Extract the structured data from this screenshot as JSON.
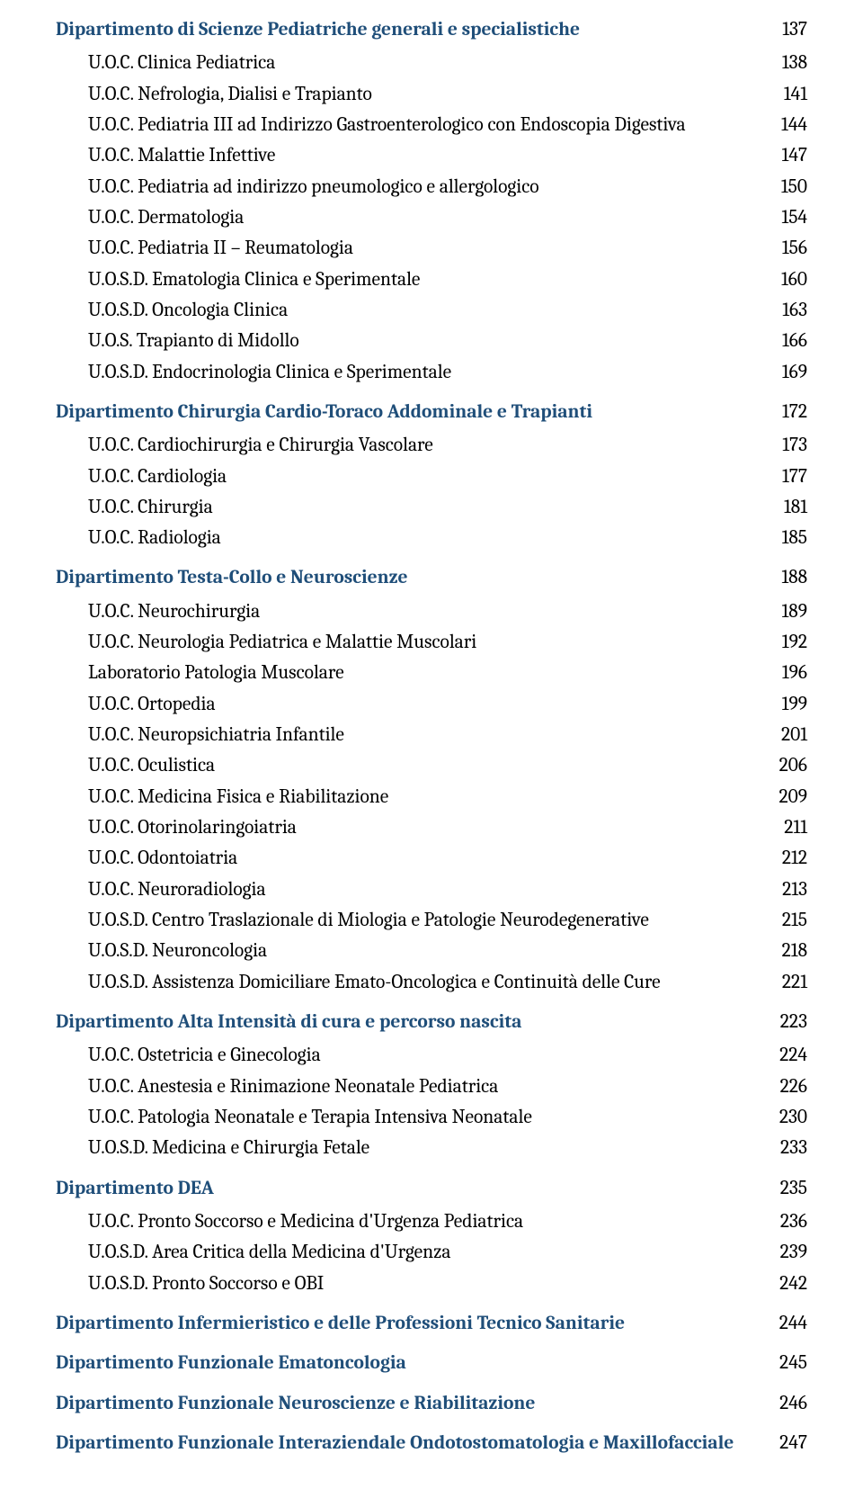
{
  "typography": {
    "font_family": "Cambria, Georgia, serif",
    "base_fontsize_pt": 16,
    "section_color": "#1f4e79",
    "text_color": "#000000",
    "background_color": "#ffffff"
  },
  "toc": [
    {
      "title": "Dipartimento di Scienze Pediatriche generali e specialistiche",
      "page": "137",
      "items": [
        {
          "label": "U.O.C. Clinica Pediatrica",
          "page": "138"
        },
        {
          "label": "U.O.C. Nefrologia, Dialisi e Trapianto",
          "page": "141"
        },
        {
          "label": "U.O.C. Pediatria III ad Indirizzo Gastroenterologico con Endoscopia Digestiva",
          "page": "144"
        },
        {
          "label": "U.O.C. Malattie Infettive",
          "page": "147"
        },
        {
          "label": "U.O.C. Pediatria ad indirizzo pneumologico e allergologico",
          "page": "150"
        },
        {
          "label": "U.O.C. Dermatologia",
          "page": "154"
        },
        {
          "label": "U.O.C. Pediatria II – Reumatologia",
          "page": "156"
        },
        {
          "label": "U.O.S.D. Ematologia Clinica e Sperimentale",
          "page": "160"
        },
        {
          "label": "U.O.S.D. Oncologia Clinica",
          "page": "163"
        },
        {
          "label": "U.O.S. Trapianto di Midollo",
          "page": "166"
        },
        {
          "label": "U.O.S.D. Endocrinologia Clinica e Sperimentale",
          "page": "169"
        }
      ]
    },
    {
      "title": "Dipartimento Chirurgia Cardio-Toraco Addominale e Trapianti",
      "page": "172",
      "items": [
        {
          "label": "U.O.C. Cardiochirurgia e Chirurgia Vascolare",
          "page": "173"
        },
        {
          "label": "U.O.C. Cardiologia",
          "page": "177"
        },
        {
          "label": "U.O.C. Chirurgia",
          "page": "181"
        },
        {
          "label": "U.O.C. Radiologia",
          "page": "185"
        }
      ]
    },
    {
      "title": "Dipartimento Testa-Collo e Neuroscienze",
      "page": "188",
      "items": [
        {
          "label": "U.O.C. Neurochirurgia",
          "page": "189"
        },
        {
          "label": "U.O.C. Neurologia Pediatrica e Malattie Muscolari",
          "page": "192"
        },
        {
          "label": "Laboratorio Patologia Muscolare",
          "page": "196"
        },
        {
          "label": "U.O.C. Ortopedia",
          "page": "199"
        },
        {
          "label": "U.O.C. Neuropsichiatria Infantile",
          "page": "201"
        },
        {
          "label": "U.O.C. Oculistica",
          "page": "206"
        },
        {
          "label": "U.O.C. Medicina Fisica e Riabilitazione",
          "page": "209"
        },
        {
          "label": "U.O.C. Otorinolaringoiatria",
          "page": "211"
        },
        {
          "label": "U.O.C. Odontoiatria",
          "page": "212"
        },
        {
          "label": "U.O.C. Neuroradiologia",
          "page": "213"
        },
        {
          "label": "U.O.S.D. Centro Traslazionale di Miologia e Patologie Neurodegenerative",
          "page": "215"
        },
        {
          "label": "U.O.S.D. Neuroncologia",
          "page": "218"
        },
        {
          "label": "U.O.S.D. Assistenza Domiciliare Emato-Oncologica e Continuità delle Cure",
          "page": "221"
        }
      ]
    },
    {
      "title": "Dipartimento Alta Intensità di cura e percorso nascita",
      "page": "223",
      "items": [
        {
          "label": "U.O.C. Ostetricia e Ginecologia",
          "page": "224"
        },
        {
          "label": "U.O.C. Anestesia e Rinimazione Neonatale Pediatrica",
          "page": "226"
        },
        {
          "label": "U.O.C. Patologia Neonatale e Terapia Intensiva Neonatale",
          "page": "230"
        },
        {
          "label": "U.O.S.D. Medicina e Chirurgia Fetale",
          "page": "233"
        }
      ]
    },
    {
      "title": "Dipartimento DEA",
      "page": "235",
      "items": [
        {
          "label": "U.O.C. Pronto Soccorso e Medicina d'Urgenza Pediatrica",
          "page": "236"
        },
        {
          "label": "U.O.S.D. Area Critica della Medicina d'Urgenza",
          "page": "239"
        },
        {
          "label": "U.O.S.D. Pronto Soccorso e OBI",
          "page": "242"
        }
      ]
    },
    {
      "title": "Dipartimento Infermieristico e delle Professioni Tecnico Sanitarie",
      "page": "244",
      "items": []
    },
    {
      "title": "Dipartimento Funzionale Ematoncologia",
      "page": "245",
      "items": []
    },
    {
      "title": "Dipartimento Funzionale Neuroscienze e Riabilitazione",
      "page": "246",
      "items": []
    },
    {
      "title": "Dipartimento Funzionale Interaziendale Ondotostomatologia e Maxillofacciale",
      "page": "247",
      "items": []
    }
  ]
}
